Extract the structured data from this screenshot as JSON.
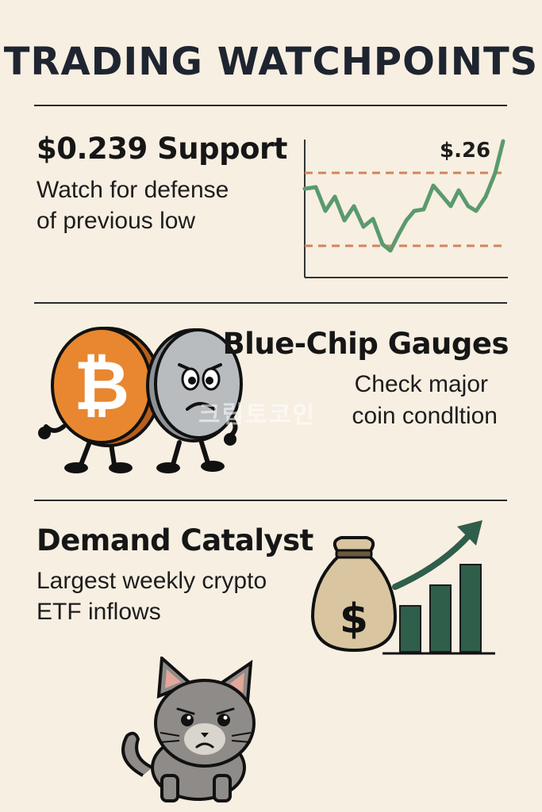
{
  "title": "TRADING WATCHPOINTS",
  "sections": [
    {
      "heading": "$0.239 Support",
      "lines": [
        "Watch for defense",
        "of previous low"
      ],
      "chart_label": "$.26",
      "icon": "price-line-chart-icon"
    },
    {
      "heading": "Blue-Chip Gauges",
      "lines": [
        "Check major",
        "coin condltion"
      ],
      "icon": "bitcoin-and-coin-characters-icon"
    },
    {
      "heading": "Demand Catalyst",
      "lines": [
        "Largest weekly crypto",
        "ETF inflows"
      ],
      "icon": "money-bag-growth-chart-icon"
    }
  ],
  "watermark": "크립토코인",
  "mascot_icon": "gray-cat-icon",
  "colors": {
    "background": "#f7efe2",
    "line_green": "#5a9a6e",
    "dashed_orange": "#d2845a",
    "bitcoin_orange": "#e8872f",
    "bar_green": "#2f5e4b"
  }
}
